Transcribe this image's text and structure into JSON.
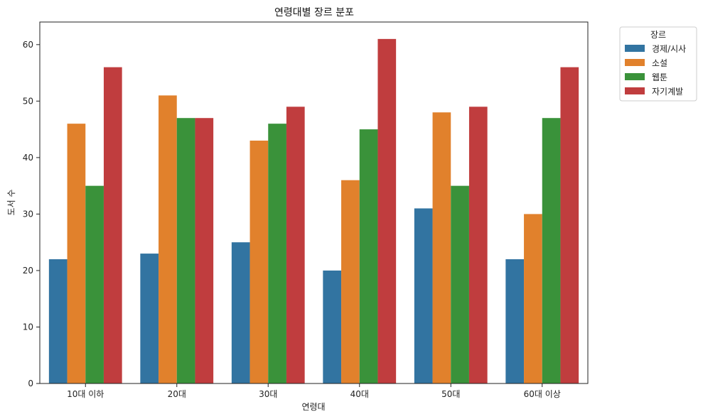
{
  "chart_data": {
    "type": "bar",
    "title": "연령대별 장르 분포",
    "xlabel": "연령대",
    "ylabel": "도서 수",
    "categories": [
      "10대 이하",
      "20대",
      "30대",
      "40대",
      "50대",
      "60대 이상"
    ],
    "series": [
      {
        "name": "경제/시사",
        "color": "#3274a1",
        "values": [
          22,
          23,
          25,
          20,
          31,
          22
        ]
      },
      {
        "name": "소설",
        "color": "#e1812c",
        "values": [
          46,
          51,
          43,
          36,
          48,
          30
        ]
      },
      {
        "name": "웹툰",
        "color": "#3a923a",
        "values": [
          35,
          47,
          46,
          45,
          35,
          47
        ]
      },
      {
        "name": "자기계발",
        "color": "#c03d3e",
        "values": [
          56,
          47,
          49,
          61,
          49,
          56
        ]
      }
    ],
    "ylim": [
      0,
      64
    ],
    "yticks": [
      0,
      10,
      20,
      30,
      40,
      50,
      60
    ],
    "grid": false,
    "legend": {
      "title": "장르",
      "placement": "outside-top-right"
    }
  }
}
